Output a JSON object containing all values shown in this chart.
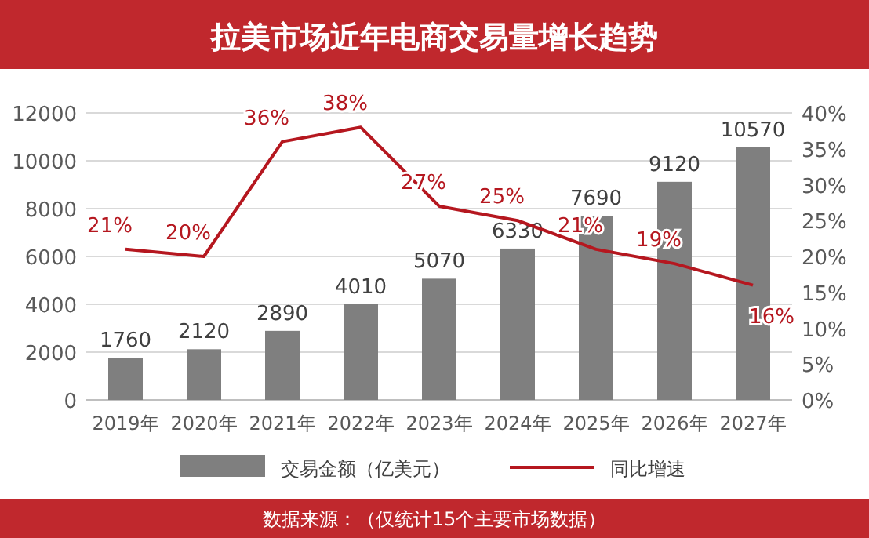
{
  "chart_data": {
    "type": "bar",
    "title": "拉美市场近年电商交易量增长趋势",
    "categories": [
      "2019年",
      "2020年",
      "2021年",
      "2022年",
      "2023年",
      "2024年",
      "2025年",
      "2026年",
      "2027年"
    ],
    "series": [
      {
        "name": "交易金额（亿美元）",
        "color": "#7f7f7f",
        "values": [
          1760,
          2120,
          2890,
          4010,
          5070,
          6330,
          7690,
          9120,
          10570
        ]
      },
      {
        "name": "同比增速",
        "type": "line",
        "axis": "y2",
        "color": "#b5171f",
        "values": [
          21,
          20,
          36,
          38,
          27,
          25,
          21,
          19,
          16
        ],
        "value_labels": [
          "21%",
          "20%",
          "36%",
          "38%",
          "27%",
          "25%",
          "21%",
          "19%",
          "16%"
        ]
      }
    ],
    "ylim": [
      0,
      12000
    ],
    "yticks": [
      0,
      2000,
      4000,
      6000,
      8000,
      10000,
      12000
    ],
    "y2lim": [
      0,
      40
    ],
    "y2ticks": [
      {
        "value": 0,
        "label": "0%"
      },
      {
        "value": 5,
        "label": "5%"
      },
      {
        "value": 10,
        "label": "10%"
      },
      {
        "value": 15,
        "label": "15%"
      },
      {
        "value": 20,
        "label": "20%"
      },
      {
        "value": 25,
        "label": "25%"
      },
      {
        "value": 30,
        "label": "30%"
      },
      {
        "value": 35,
        "label": "35%"
      },
      {
        "value": 40,
        "label": "40%"
      }
    ],
    "grid": "y",
    "legend": "bottom",
    "marker": "none",
    "line_style": "solid",
    "data_labels": true,
    "annotations": [
      "数据来源：（仅统计15个主要市场数据）"
    ]
  }
}
